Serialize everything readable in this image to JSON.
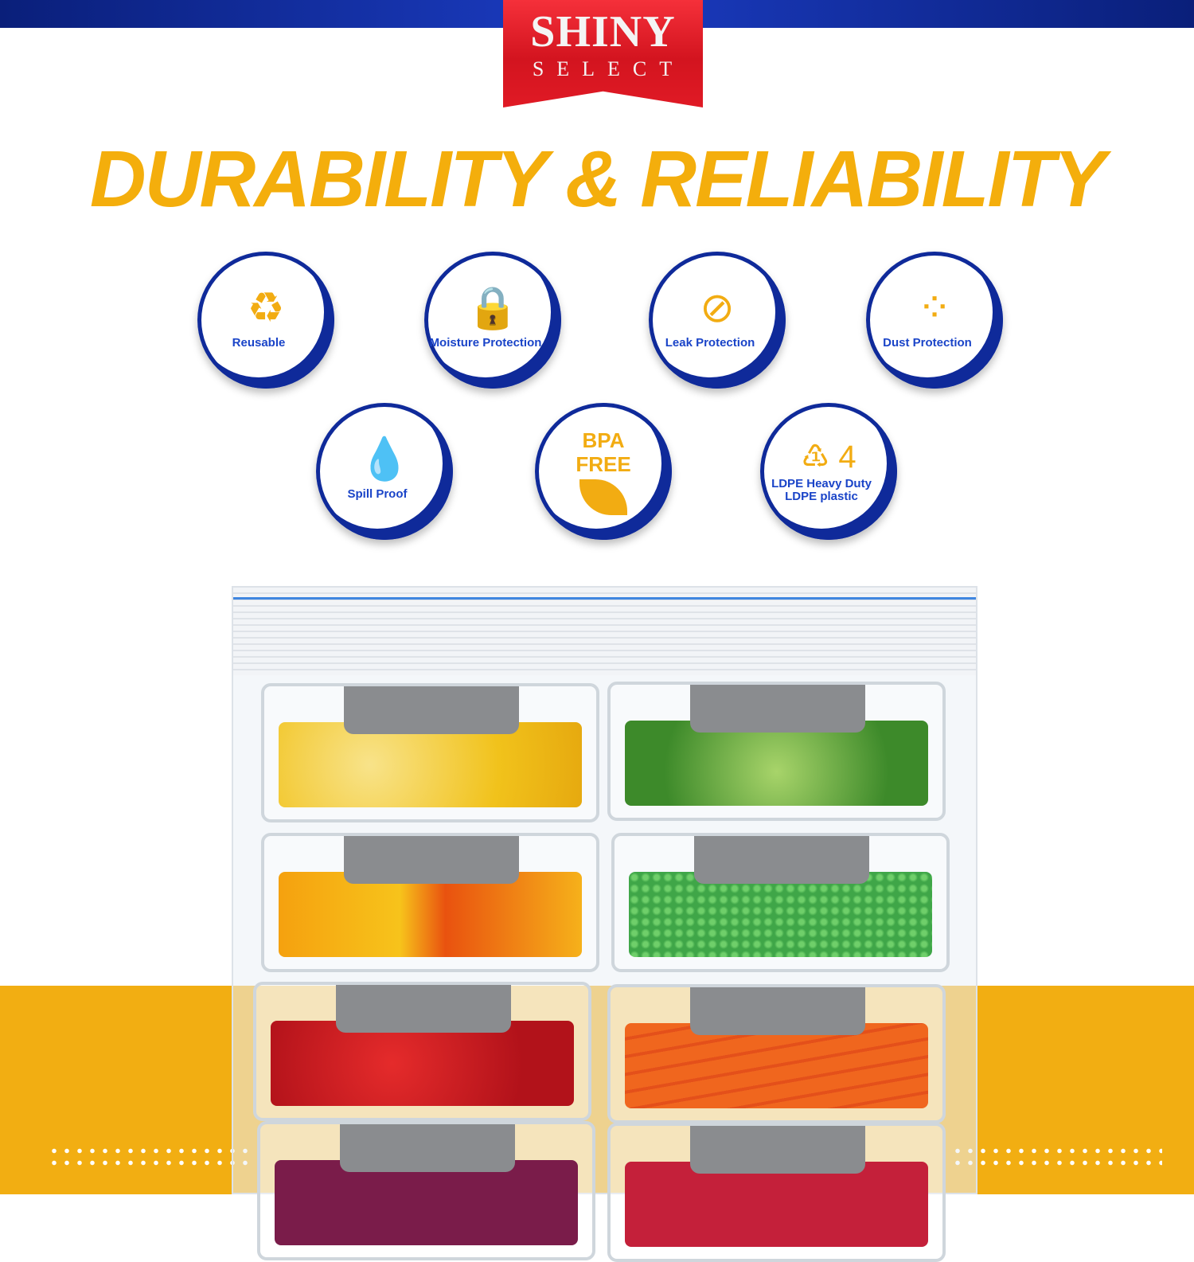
{
  "brand": {
    "name_line1": "SHINY",
    "name_line2": "SELECT"
  },
  "headline": "DURABILITY & RELIABILITY",
  "features": [
    {
      "icon": "recycle-arrows-icon",
      "glyph": "♻",
      "label": "Reusable"
    },
    {
      "icon": "drop-lock-icon",
      "glyph": "🔒",
      "label": "Moisture Protection"
    },
    {
      "icon": "no-leak-icon",
      "glyph": "⊘",
      "label": "Leak Protection"
    },
    {
      "icon": "dust-deflect-icon",
      "glyph": "⁘",
      "label": "Dust Protection"
    },
    {
      "icon": "spill-drop-icon",
      "glyph": "💧",
      "label": "Spill Proof"
    },
    {
      "icon": "bpa-free-leaf-icon",
      "glyph": "BPA FREE",
      "label": ""
    },
    {
      "icon": "recycle-4-icon",
      "glyph": "♳ 4",
      "label": "LDPE Heavy Duty LDPE plastic"
    }
  ],
  "colors": {
    "accent_yellow": "#f2ae12",
    "brand_blue": "#0f2a9a",
    "brand_red": "#d3141f",
    "label_blue": "#1a44c8"
  },
  "product_contents": [
    "lemons",
    "cucumbers",
    "bell peppers",
    "peas",
    "strawberries",
    "carrots",
    "red cabbage",
    "mixed berries"
  ]
}
